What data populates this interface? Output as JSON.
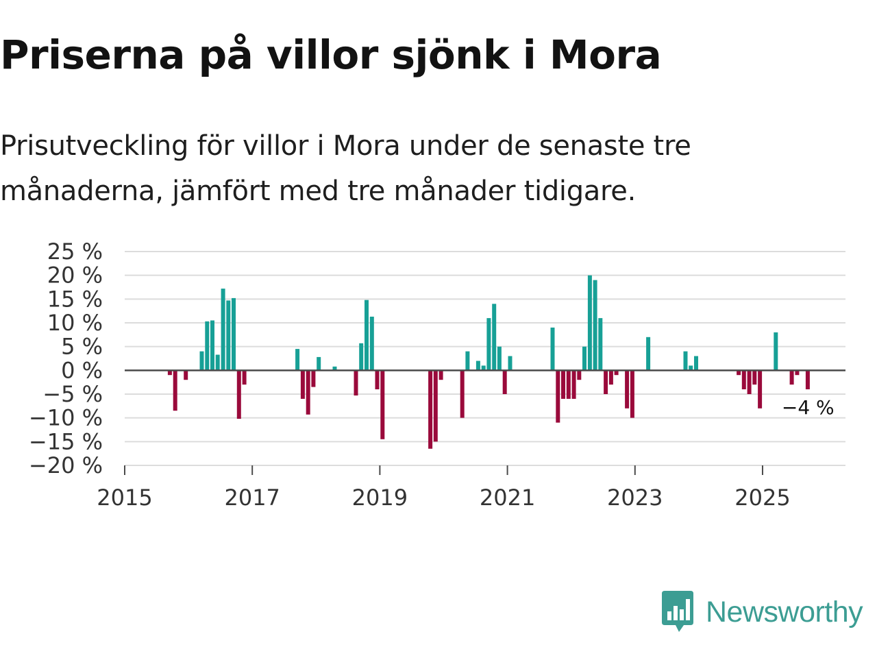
{
  "header": {
    "title": "Priserna på villor sjönk i Mora",
    "subtitle": "Prisutveckling för villor i Mora under de senaste tre månaderna, jämfört med tre månader tidigare."
  },
  "brand": {
    "name": "Newsworthy",
    "color": "#3c9d93"
  },
  "colors": {
    "positive": "#17a096",
    "negative": "#9a0a3b",
    "grid": "#dcdcdc",
    "axis": "#4a4a4a"
  },
  "chart_data": {
    "type": "bar",
    "title": "Priserna på villor sjönk i Mora",
    "xlabel": "",
    "ylabel": "",
    "unit": " %",
    "ylim": [
      -20,
      25
    ],
    "yticks": [
      25,
      20,
      15,
      10,
      5,
      0,
      -5,
      -10,
      -15,
      -20
    ],
    "ytick_labels": [
      "25 %",
      "20 %",
      "15 %",
      "10 %",
      "5 %",
      "0 %",
      "−5 %",
      "−10 %",
      "−15 %",
      "−20 %"
    ],
    "xlim": [
      2015,
      2026.3
    ],
    "xticks": [
      2015,
      2017,
      2019,
      2021,
      2023,
      2025
    ],
    "xtick_labels": [
      "2015",
      "2017",
      "2019",
      "2021",
      "2023",
      "2025"
    ],
    "grid": true,
    "end_label": "−4 %",
    "x": [
      2015.708,
      2015.792,
      2015.958,
      2016.208,
      2016.292,
      2016.375,
      2016.458,
      2016.542,
      2016.625,
      2016.708,
      2016.792,
      2016.875,
      2017.708,
      2017.792,
      2017.875,
      2017.958,
      2018.042,
      2018.292,
      2018.625,
      2018.708,
      2018.792,
      2018.875,
      2018.958,
      2019.042,
      2019.792,
      2019.875,
      2019.958,
      2020.292,
      2020.375,
      2020.542,
      2020.625,
      2020.708,
      2020.792,
      2020.875,
      2020.958,
      2021.042,
      2021.708,
      2021.792,
      2021.875,
      2021.958,
      2022.042,
      2022.125,
      2022.208,
      2022.292,
      2022.375,
      2022.458,
      2022.542,
      2022.625,
      2022.708,
      2022.875,
      2022.958,
      2023.208,
      2023.792,
      2023.875,
      2023.958,
      2024.625,
      2024.708,
      2024.792,
      2024.875,
      2024.958,
      2025.208,
      2025.458,
      2025.542,
      2025.708
    ],
    "values": [
      -1,
      -8.5,
      -2,
      4,
      10.3,
      10.5,
      3.3,
      17.2,
      14.7,
      15.2,
      -10.2,
      -3,
      4.5,
      -6,
      -9.3,
      -3.5,
      2.8,
      0.8,
      -5.3,
      5.7,
      14.8,
      11.3,
      -4,
      -14.5,
      -16.5,
      -15,
      -2,
      -10,
      4,
      2,
      1,
      11,
      14,
      5,
      -5,
      3,
      9,
      -11,
      -6,
      -6,
      -6,
      -2,
      5,
      20,
      19,
      11,
      -5,
      -3,
      -1,
      -8,
      -10,
      7,
      4,
      1,
      3,
      -1,
      -4,
      -5,
      -3,
      -8,
      8,
      -3,
      -1,
      -4
    ]
  }
}
